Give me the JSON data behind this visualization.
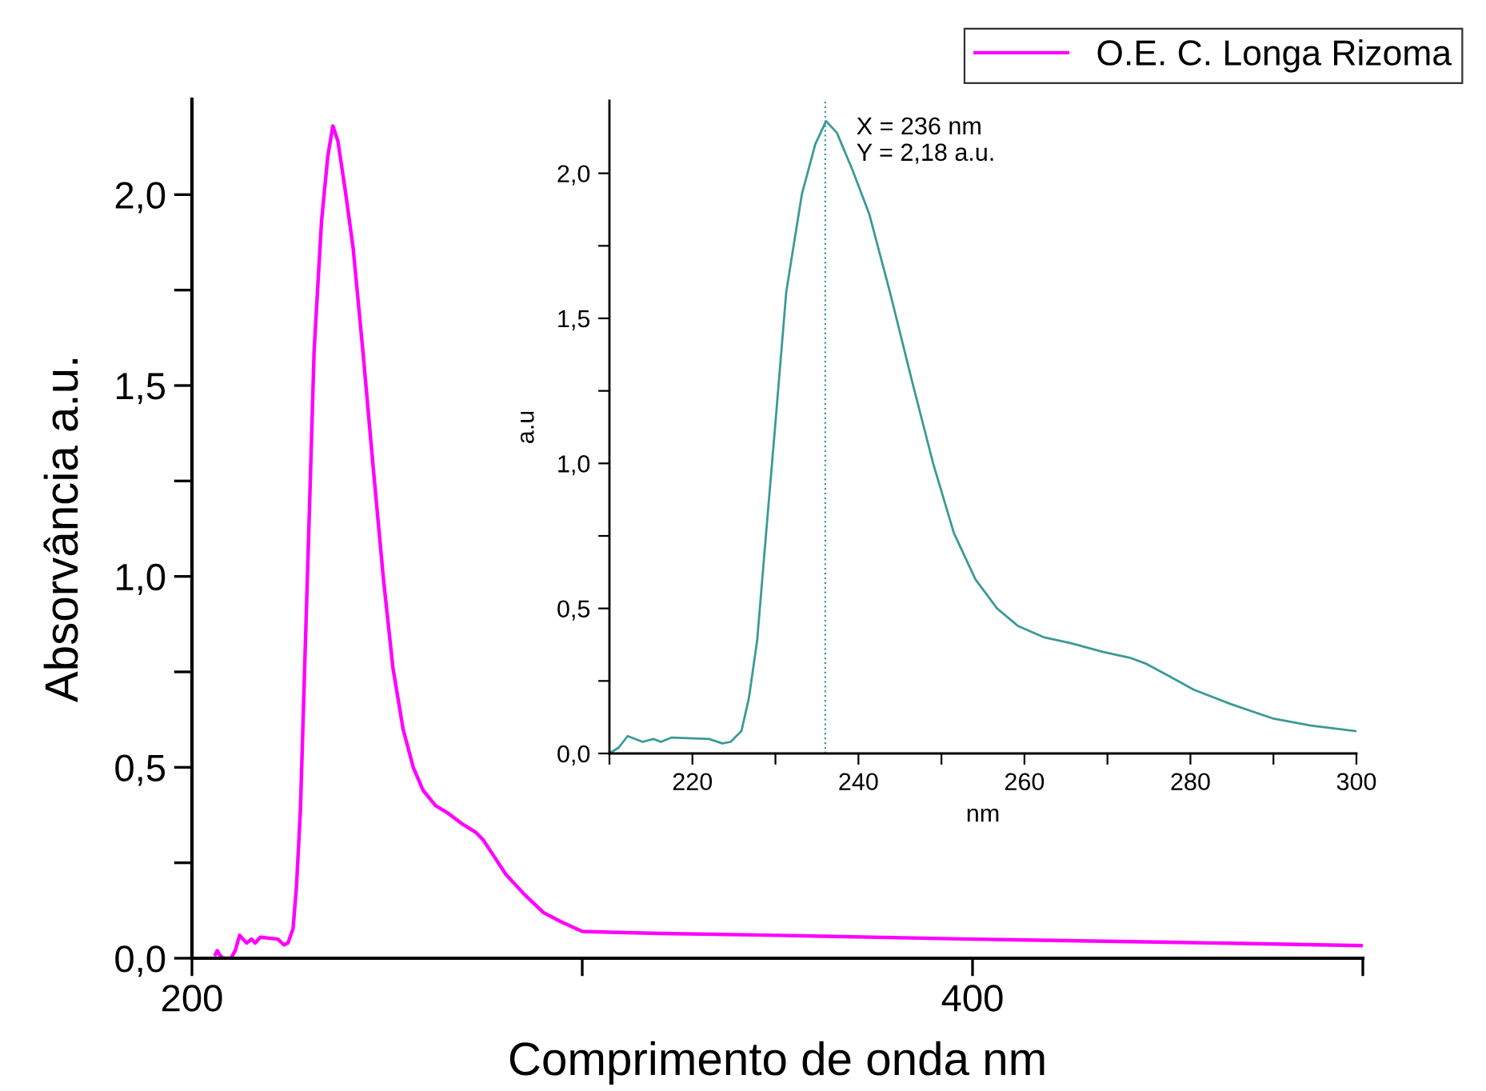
{
  "chart_data": [
    {
      "type": "line",
      "xlabel": "Comprimento de onda nm",
      "ylabel": "Absorvância a.u.",
      "xlim": [
        200,
        500
      ],
      "xticks": [
        200,
        {
          "value": 300,
          "label": null
        },
        400,
        {
          "value": 500,
          "label": null
        }
      ],
      "ylim": [
        0,
        2.25
      ],
      "yticks": [
        {
          "value": 0,
          "label": "0,0"
        },
        {
          "value": 0.25,
          "label": null
        },
        {
          "value": 0.5,
          "label": "0,5"
        },
        {
          "value": 0.75,
          "label": null
        },
        {
          "value": 1.0,
          "label": "1,0"
        },
        {
          "value": 1.25,
          "label": null
        },
        {
          "value": 1.5,
          "label": "1,5"
        },
        {
          "value": 1.75,
          "label": null
        },
        {
          "value": 2.0,
          "label": "2,0"
        }
      ],
      "grid": false,
      "legend": "top right",
      "marker": "none",
      "line_style": "solid",
      "series": [
        {
          "name": "O.E. C. Longa Rizoma",
          "color": "#ff00ff",
          "x": [
            206,
            206.5,
            207,
            208,
            209,
            210,
            211.1,
            212.2,
            214,
            215.3,
            216.2,
            217.5,
            222,
            223.6,
            224.6,
            225.9,
            226.8,
            227.8,
            228.7,
            230,
            231.3,
            232.3,
            233.2,
            234.8,
            236.1,
            237.4,
            239.3,
            241.3,
            243.8,
            246.4,
            249,
            251.5,
            254.1,
            256.7,
            259.2,
            262.4,
            265.6,
            269.5,
            272.7,
            274.6,
            277.2,
            280.4,
            284.9,
            290,
            294.5,
            300,
            320,
            350,
            400,
            450,
            500
          ],
          "values": [
            0.01,
            0.02,
            0.01,
            0.0,
            0.0,
            0.0,
            0.02,
            0.06,
            0.04,
            0.05,
            0.04,
            0.055,
            0.05,
            0.035,
            0.04,
            0.077,
            0.19,
            0.39,
            0.7,
            1.14,
            1.59,
            1.77,
            1.93,
            2.1,
            2.18,
            2.14,
            2.01,
            1.86,
            1.59,
            1.29,
            1.0,
            0.76,
            0.6,
            0.5,
            0.44,
            0.4,
            0.38,
            0.35,
            0.33,
            0.31,
            0.27,
            0.22,
            0.17,
            0.12,
            0.096,
            0.07,
            0.065,
            0.06,
            0.05,
            0.042,
            0.033
          ]
        }
      ]
    },
    {
      "type": "line",
      "xlabel": "nm",
      "ylabel": "a.u",
      "xlim": [
        210,
        300
      ],
      "xticks": [
        {
          "value": 210,
          "label": null
        },
        220,
        {
          "value": 230,
          "label": null
        },
        240,
        {
          "value": 250,
          "label": null
        },
        260,
        {
          "value": 270,
          "label": null
        },
        280,
        {
          "value": 290,
          "label": null
        },
        300
      ],
      "ylim": [
        0,
        2.25
      ],
      "yticks": [
        {
          "value": 0,
          "label": "0,0"
        },
        {
          "value": 0.25,
          "label": null
        },
        {
          "value": 0.5,
          "label": "0,5"
        },
        {
          "value": 0.75,
          "label": null
        },
        {
          "value": 1.0,
          "label": "1,0"
        },
        {
          "value": 1.25,
          "label": null
        },
        {
          "value": 1.5,
          "label": "1,5"
        },
        {
          "value": 1.75,
          "label": null
        },
        {
          "value": 2.0,
          "label": "2,0"
        }
      ],
      "grid": false,
      "marker": "none",
      "line_style": "solid",
      "annotations": [
        {
          "text": "X = 236 nm\nY = 2,18 a.u.",
          "x": 236,
          "y": 2.18
        }
      ],
      "ref_lines": [
        {
          "axis": "x",
          "value": 236,
          "color": "#3a9a96",
          "line_style": "dotted"
        }
      ],
      "series": [
        {
          "color": "#3a9a96",
          "x": [
            210,
            211.1,
            212.2,
            214,
            215.3,
            216.2,
            217.5,
            222,
            223.6,
            224.6,
            225.9,
            226.8,
            227.8,
            228.7,
            230,
            231.3,
            232.3,
            233.2,
            234.8,
            236.1,
            237.4,
            239.3,
            241.3,
            243.8,
            246.4,
            249,
            251.5,
            254.1,
            256.7,
            259.2,
            262.4,
            265.6,
            269.5,
            272.7,
            274.6,
            277.2,
            280.4,
            284.9,
            290,
            294.5,
            300
          ],
          "values": [
            0.0,
            0.02,
            0.06,
            0.04,
            0.05,
            0.04,
            0.055,
            0.05,
            0.035,
            0.04,
            0.077,
            0.19,
            0.39,
            0.7,
            1.14,
            1.59,
            1.77,
            1.93,
            2.1,
            2.18,
            2.14,
            2.01,
            1.86,
            1.59,
            1.29,
            1.0,
            0.76,
            0.6,
            0.5,
            0.44,
            0.4,
            0.38,
            0.35,
            0.33,
            0.31,
            0.27,
            0.22,
            0.17,
            0.12,
            0.096,
            0.077
          ]
        }
      ]
    }
  ]
}
